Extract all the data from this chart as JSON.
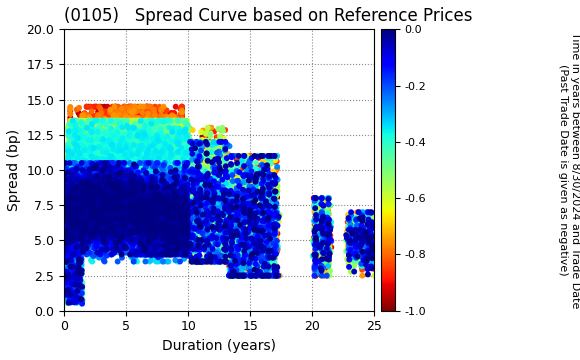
{
  "title": "(0105)   Spread Curve based on Reference Prices",
  "xlabel": "Duration (years)",
  "ylabel": "Spread (bp)",
  "colorbar_label_line1": "Time in years between 8/30/2024 and Trade Date",
  "colorbar_label_line2": "(Past Trade Date is given as negative)",
  "xlim": [
    0,
    25
  ],
  "ylim": [
    0.0,
    20.0
  ],
  "cmap": "jet_r",
  "color_min": -1.0,
  "color_max": 0.0,
  "background_color": "#ffffff",
  "grid_color": "#888888",
  "title_fontsize": 12,
  "axis_fontsize": 10,
  "colorbar_fontsize": 8
}
